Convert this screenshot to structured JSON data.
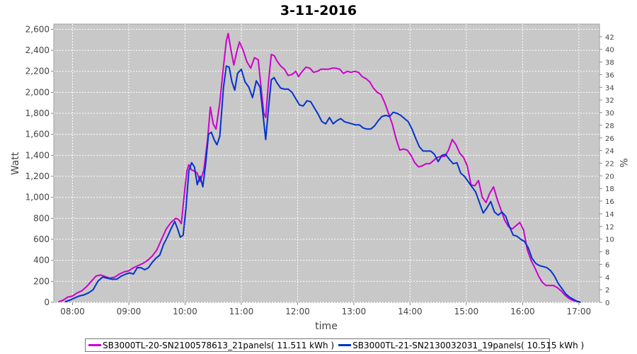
{
  "chart_data": {
    "type": "line",
    "title": "3-11-2016",
    "xlabel": "time",
    "ylabel": "Watt",
    "y2label": "%",
    "xlim": [
      "07:40",
      "17:22"
    ],
    "ylim": [
      0,
      2650
    ],
    "y2lim": [
      0,
      44
    ],
    "xticks": [
      "08:00",
      "09:00",
      "10:00",
      "11:00",
      "12:00",
      "13:00",
      "14:00",
      "15:00",
      "16:00",
      "17:00"
    ],
    "yticks": [
      "0",
      "200",
      "400",
      "600",
      "800",
      "1,000",
      "1,200",
      "1,400",
      "1,600",
      "1,800",
      "2,000",
      "2,200",
      "2,400",
      "2,600"
    ],
    "y2ticks": [
      "0",
      "2",
      "4",
      "6",
      "8",
      "10",
      "12",
      "14",
      "16",
      "18",
      "20",
      "22",
      "24",
      "26",
      "28",
      "30",
      "32",
      "34",
      "36",
      "38",
      "40",
      "42"
    ],
    "grid": true,
    "legend_position": "bottom",
    "background": "#c8c8c8",
    "series": [
      {
        "name": "SB3000TL-20-SN2100578613_21panels( 11.511 kWh )",
        "color": "#cc00cc",
        "points": [
          [
            "07:45",
            5
          ],
          [
            "07:50",
            20
          ],
          [
            "07:55",
            50
          ],
          [
            "08:00",
            60
          ],
          [
            "08:05",
            90
          ],
          [
            "08:10",
            110
          ],
          [
            "08:15",
            150
          ],
          [
            "08:20",
            200
          ],
          [
            "08:25",
            250
          ],
          [
            "08:30",
            260
          ],
          [
            "08:35",
            245
          ],
          [
            "08:40",
            230
          ],
          [
            "08:45",
            240
          ],
          [
            "08:50",
            270
          ],
          [
            "08:55",
            290
          ],
          [
            "09:00",
            300
          ],
          [
            "09:05",
            330
          ],
          [
            "09:10",
            350
          ],
          [
            "09:15",
            370
          ],
          [
            "09:20",
            400
          ],
          [
            "09:25",
            440
          ],
          [
            "09:30",
            500
          ],
          [
            "09:35",
            600
          ],
          [
            "09:40",
            700
          ],
          [
            "09:45",
            760
          ],
          [
            "09:50",
            800
          ],
          [
            "09:53",
            790
          ],
          [
            "09:56",
            750
          ],
          [
            "10:00",
            1100
          ],
          [
            "10:02",
            1250
          ],
          [
            "10:04",
            1310
          ],
          [
            "10:07",
            1260
          ],
          [
            "10:10",
            1250
          ],
          [
            "10:13",
            1230
          ],
          [
            "10:16",
            1150
          ],
          [
            "10:20",
            1260
          ],
          [
            "10:24",
            1550
          ],
          [
            "10:27",
            1860
          ],
          [
            "10:30",
            1700
          ],
          [
            "10:33",
            1650
          ],
          [
            "10:37",
            1900
          ],
          [
            "10:41",
            2250
          ],
          [
            "10:44",
            2490
          ],
          [
            "10:46",
            2560
          ],
          [
            "10:49",
            2400
          ],
          [
            "10:52",
            2260
          ],
          [
            "10:55",
            2380
          ],
          [
            "10:58",
            2480
          ],
          [
            "11:02",
            2400
          ],
          [
            "11:06",
            2290
          ],
          [
            "11:10",
            2230
          ],
          [
            "11:14",
            2330
          ],
          [
            "11:18",
            2310
          ],
          [
            "11:21",
            2050
          ],
          [
            "11:24",
            1800
          ],
          [
            "11:26",
            1760
          ],
          [
            "11:29",
            2100
          ],
          [
            "11:32",
            2360
          ],
          [
            "11:35",
            2350
          ],
          [
            "11:38",
            2300
          ],
          [
            "11:42",
            2250
          ],
          [
            "11:46",
            2220
          ],
          [
            "11:50",
            2160
          ],
          [
            "11:54",
            2170
          ],
          [
            "11:58",
            2200
          ],
          [
            "12:01",
            2150
          ],
          [
            "12:05",
            2200
          ],
          [
            "12:09",
            2240
          ],
          [
            "12:13",
            2230
          ],
          [
            "12:17",
            2190
          ],
          [
            "12:21",
            2200
          ],
          [
            "12:25",
            2220
          ],
          [
            "12:29",
            2220
          ],
          [
            "12:33",
            2220
          ],
          [
            "12:37",
            2230
          ],
          [
            "12:41",
            2230
          ],
          [
            "12:45",
            2220
          ],
          [
            "12:49",
            2180
          ],
          [
            "12:53",
            2200
          ],
          [
            "12:57",
            2190
          ],
          [
            "13:01",
            2200
          ],
          [
            "13:05",
            2190
          ],
          [
            "13:09",
            2150
          ],
          [
            "13:13",
            2130
          ],
          [
            "13:17",
            2100
          ],
          [
            "13:21",
            2040
          ],
          [
            "13:25",
            2000
          ],
          [
            "13:29",
            1980
          ],
          [
            "13:33",
            1900
          ],
          [
            "13:37",
            1800
          ],
          [
            "13:41",
            1700
          ],
          [
            "13:45",
            1560
          ],
          [
            "13:49",
            1450
          ],
          [
            "13:53",
            1460
          ],
          [
            "13:57",
            1450
          ],
          [
            "14:01",
            1400
          ],
          [
            "14:05",
            1330
          ],
          [
            "14:09",
            1290
          ],
          [
            "14:13",
            1300
          ],
          [
            "14:17",
            1320
          ],
          [
            "14:21",
            1320
          ],
          [
            "14:25",
            1350
          ],
          [
            "14:29",
            1380
          ],
          [
            "14:33",
            1390
          ],
          [
            "14:37",
            1390
          ],
          [
            "14:41",
            1450
          ],
          [
            "14:45",
            1550
          ],
          [
            "14:49",
            1500
          ],
          [
            "14:53",
            1420
          ],
          [
            "14:57",
            1380
          ],
          [
            "15:01",
            1300
          ],
          [
            "15:05",
            1120
          ],
          [
            "15:09",
            1110
          ],
          [
            "15:13",
            1160
          ],
          [
            "15:17",
            1000
          ],
          [
            "15:21",
            950
          ],
          [
            "15:25",
            1040
          ],
          [
            "15:29",
            1100
          ],
          [
            "15:33",
            980
          ],
          [
            "15:37",
            880
          ],
          [
            "15:41",
            780
          ],
          [
            "15:45",
            720
          ],
          [
            "15:49",
            700
          ],
          [
            "15:53",
            730
          ],
          [
            "15:57",
            760
          ],
          [
            "16:01",
            690
          ],
          [
            "16:05",
            500
          ],
          [
            "16:09",
            400
          ],
          [
            "16:13",
            330
          ],
          [
            "16:17",
            250
          ],
          [
            "16:21",
            190
          ],
          [
            "16:25",
            160
          ],
          [
            "16:29",
            160
          ],
          [
            "16:33",
            160
          ],
          [
            "16:37",
            140
          ],
          [
            "16:41",
            110
          ],
          [
            "16:45",
            70
          ],
          [
            "16:49",
            40
          ],
          [
            "16:53",
            20
          ],
          [
            "16:57",
            10
          ],
          [
            "17:00",
            5
          ]
        ]
      },
      {
        "name": "SB3000TL-21-SN2130032031_19panels( 10.515 kWh )",
        "color": "#0033cc",
        "points": [
          [
            "07:52",
            5
          ],
          [
            "07:57",
            20
          ],
          [
            "08:02",
            40
          ],
          [
            "08:07",
            60
          ],
          [
            "08:12",
            70
          ],
          [
            "08:17",
            90
          ],
          [
            "08:22",
            120
          ],
          [
            "08:27",
            200
          ],
          [
            "08:32",
            240
          ],
          [
            "08:37",
            230
          ],
          [
            "08:42",
            220
          ],
          [
            "08:47",
            220
          ],
          [
            "08:52",
            250
          ],
          [
            "08:57",
            270
          ],
          [
            "09:01",
            280
          ],
          [
            "09:05",
            270
          ],
          [
            "09:09",
            330
          ],
          [
            "09:13",
            330
          ],
          [
            "09:17",
            310
          ],
          [
            "09:21",
            330
          ],
          [
            "09:25",
            380
          ],
          [
            "09:29",
            420
          ],
          [
            "09:33",
            450
          ],
          [
            "09:37",
            550
          ],
          [
            "09:41",
            620
          ],
          [
            "09:45",
            700
          ],
          [
            "09:49",
            770
          ],
          [
            "09:52",
            700
          ],
          [
            "09:55",
            620
          ],
          [
            "09:58",
            640
          ],
          [
            "10:01",
            900
          ],
          [
            "10:04",
            1250
          ],
          [
            "10:07",
            1330
          ],
          [
            "10:10",
            1290
          ],
          [
            "10:13",
            1120
          ],
          [
            "10:16",
            1200
          ],
          [
            "10:19",
            1100
          ],
          [
            "10:22",
            1320
          ],
          [
            "10:25",
            1600
          ],
          [
            "10:28",
            1620
          ],
          [
            "10:31",
            1550
          ],
          [
            "10:34",
            1500
          ],
          [
            "10:37",
            1580
          ],
          [
            "10:41",
            2050
          ],
          [
            "10:44",
            2250
          ],
          [
            "10:47",
            2240
          ],
          [
            "10:50",
            2100
          ],
          [
            "10:53",
            2020
          ],
          [
            "10:56",
            2180
          ],
          [
            "11:00",
            2220
          ],
          [
            "11:04",
            2100
          ],
          [
            "11:08",
            2050
          ],
          [
            "11:12",
            1950
          ],
          [
            "11:16",
            2110
          ],
          [
            "11:20",
            2050
          ],
          [
            "11:23",
            1800
          ],
          [
            "11:26",
            1550
          ],
          [
            "11:29",
            1850
          ],
          [
            "11:32",
            2120
          ],
          [
            "11:35",
            2140
          ],
          [
            "11:38",
            2090
          ],
          [
            "11:42",
            2040
          ],
          [
            "11:46",
            2030
          ],
          [
            "11:50",
            2030
          ],
          [
            "11:54",
            2000
          ],
          [
            "11:58",
            1940
          ],
          [
            "12:02",
            1880
          ],
          [
            "12:06",
            1870
          ],
          [
            "12:10",
            1920
          ],
          [
            "12:14",
            1910
          ],
          [
            "12:18",
            1850
          ],
          [
            "12:22",
            1790
          ],
          [
            "12:26",
            1720
          ],
          [
            "12:30",
            1700
          ],
          [
            "12:34",
            1760
          ],
          [
            "12:38",
            1700
          ],
          [
            "12:42",
            1730
          ],
          [
            "12:46",
            1750
          ],
          [
            "12:50",
            1720
          ],
          [
            "12:54",
            1710
          ],
          [
            "12:58",
            1700
          ],
          [
            "13:02",
            1690
          ],
          [
            "13:06",
            1690
          ],
          [
            "13:10",
            1660
          ],
          [
            "13:14",
            1650
          ],
          [
            "13:18",
            1650
          ],
          [
            "13:22",
            1680
          ],
          [
            "13:26",
            1730
          ],
          [
            "13:30",
            1770
          ],
          [
            "13:34",
            1780
          ],
          [
            "13:38",
            1770
          ],
          [
            "13:42",
            1810
          ],
          [
            "13:46",
            1800
          ],
          [
            "13:50",
            1780
          ],
          [
            "13:54",
            1750
          ],
          [
            "13:58",
            1720
          ],
          [
            "14:02",
            1650
          ],
          [
            "14:06",
            1560
          ],
          [
            "14:10",
            1480
          ],
          [
            "14:14",
            1440
          ],
          [
            "14:18",
            1440
          ],
          [
            "14:22",
            1440
          ],
          [
            "14:26",
            1410
          ],
          [
            "14:30",
            1340
          ],
          [
            "14:34",
            1400
          ],
          [
            "14:38",
            1410
          ],
          [
            "14:42",
            1360
          ],
          [
            "14:46",
            1320
          ],
          [
            "14:50",
            1330
          ],
          [
            "14:54",
            1230
          ],
          [
            "14:58",
            1200
          ],
          [
            "15:02",
            1150
          ],
          [
            "15:06",
            1100
          ],
          [
            "15:10",
            1050
          ],
          [
            "15:14",
            950
          ],
          [
            "15:18",
            850
          ],
          [
            "15:22",
            900
          ],
          [
            "15:26",
            960
          ],
          [
            "15:30",
            860
          ],
          [
            "15:34",
            830
          ],
          [
            "15:38",
            860
          ],
          [
            "15:42",
            820
          ],
          [
            "15:46",
            720
          ],
          [
            "15:50",
            640
          ],
          [
            "15:54",
            630
          ],
          [
            "15:58",
            600
          ],
          [
            "16:02",
            580
          ],
          [
            "16:06",
            520
          ],
          [
            "16:10",
            420
          ],
          [
            "16:14",
            370
          ],
          [
            "16:18",
            350
          ],
          [
            "16:22",
            340
          ],
          [
            "16:26",
            330
          ],
          [
            "16:30",
            300
          ],
          [
            "16:34",
            250
          ],
          [
            "16:38",
            180
          ],
          [
            "16:42",
            130
          ],
          [
            "16:46",
            80
          ],
          [
            "16:50",
            50
          ],
          [
            "16:54",
            30
          ],
          [
            "16:58",
            10
          ],
          [
            "17:02",
            0
          ]
        ]
      }
    ]
  }
}
